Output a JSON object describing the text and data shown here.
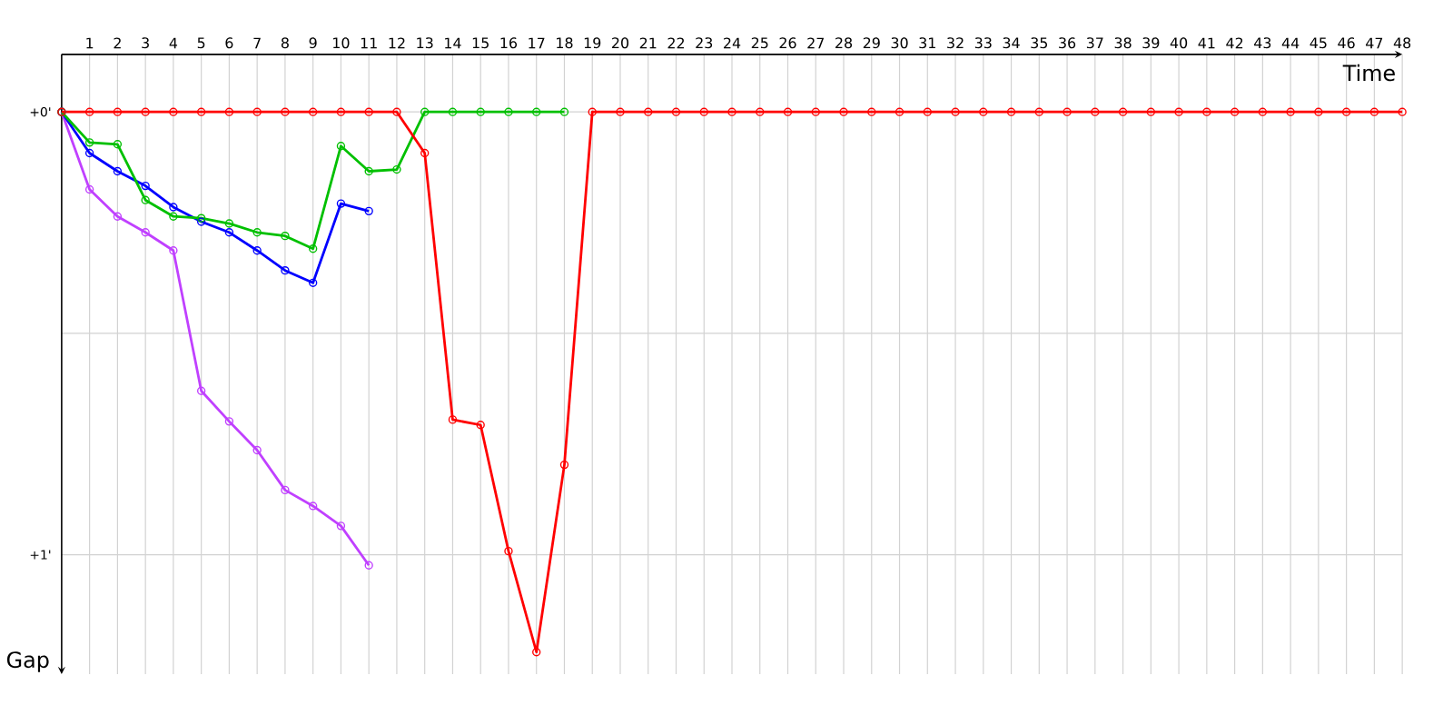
{
  "chart_data": {
    "type": "line",
    "xlabel": "Time",
    "ylabel": "Gap",
    "xlim": [
      0,
      48
    ],
    "xticks": [
      1,
      2,
      3,
      4,
      5,
      6,
      7,
      8,
      9,
      10,
      11,
      12,
      13,
      14,
      15,
      16,
      17,
      18,
      19,
      20,
      21,
      22,
      23,
      24,
      25,
      26,
      27,
      28,
      29,
      30,
      31,
      32,
      33,
      34,
      35,
      36,
      37,
      38,
      39,
      40,
      41,
      42,
      43,
      44,
      45,
      46,
      47,
      48
    ],
    "ylim": [
      1.27,
      -0.13
    ],
    "yticks": [
      {
        "value": 0,
        "label": "+0'"
      },
      {
        "value": 0.5,
        "label": null
      },
      {
        "value": 1,
        "label": "+1'"
      }
    ],
    "grid": true,
    "marker": "circle",
    "line_style": "solid",
    "series": [
      {
        "color": "#c040ff",
        "x": [
          0,
          1,
          2,
          3,
          4,
          5,
          6,
          7,
          8,
          9,
          10,
          11
        ],
        "values": [
          0,
          0.175,
          0.236,
          0.272,
          0.313,
          0.63,
          0.699,
          0.764,
          0.854,
          0.89,
          0.935,
          1.024
        ]
      },
      {
        "color": "#0000ff",
        "x": [
          0,
          1,
          2,
          3,
          4,
          5,
          6,
          7,
          8,
          9,
          10,
          11
        ],
        "values": [
          0,
          0.093,
          0.134,
          0.167,
          0.215,
          0.248,
          0.272,
          0.313,
          0.358,
          0.386,
          0.207,
          0.224
        ]
      },
      {
        "color": "#00c000",
        "x": [
          0,
          1,
          2,
          3,
          4,
          5,
          6,
          7,
          8,
          9,
          10,
          11,
          12,
          13,
          14,
          15,
          16,
          17,
          18
        ],
        "values": [
          0,
          0.069,
          0.073,
          0.199,
          0.236,
          0.24,
          0.252,
          0.272,
          0.28,
          0.309,
          0.077,
          0.134,
          0.13,
          0,
          0,
          0,
          0,
          0,
          0
        ]
      },
      {
        "color": "#ff0000",
        "x": [
          0,
          1,
          2,
          3,
          4,
          5,
          6,
          7,
          8,
          9,
          10,
          11,
          12,
          13,
          14,
          15,
          16,
          17,
          18,
          19,
          20,
          21,
          22,
          23,
          24,
          25,
          26,
          27,
          28,
          29,
          30,
          31,
          32,
          33,
          34,
          35,
          36,
          37,
          38,
          39,
          40,
          41,
          42,
          43,
          44,
          45,
          46,
          47,
          48
        ],
        "values": [
          0,
          0,
          0,
          0,
          0,
          0,
          0,
          0,
          0,
          0,
          0,
          0,
          0,
          0.093,
          0.695,
          0.707,
          0.992,
          1.22,
          0.797,
          0,
          0,
          0,
          0,
          0,
          0,
          0,
          0,
          0,
          0,
          0,
          0,
          0,
          0,
          0,
          0,
          0,
          0,
          0,
          0,
          0,
          0,
          0,
          0,
          0,
          0,
          0,
          0,
          0,
          0
        ]
      }
    ]
  }
}
